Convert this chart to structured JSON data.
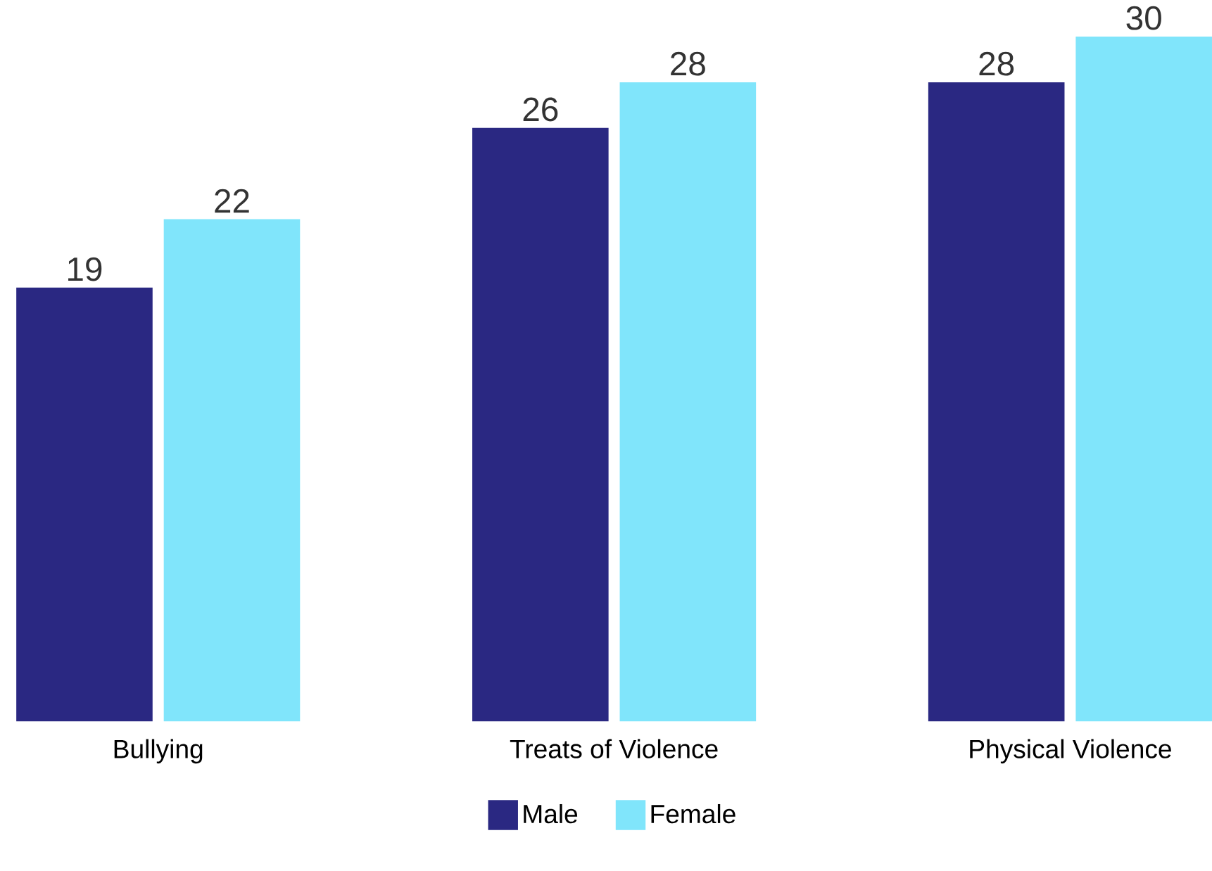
{
  "chart_data": {
    "type": "bar",
    "categories": [
      "Bullying",
      "Treats of Violence",
      "Physical Violence"
    ],
    "series": [
      {
        "name": "Male",
        "color": "#2a2882",
        "values": [
          19,
          26,
          28
        ]
      },
      {
        "name": "Female",
        "color": "#80e5fb",
        "values": [
          22,
          28,
          30
        ]
      }
    ],
    "data_labels": true,
    "legend": "bottom"
  }
}
